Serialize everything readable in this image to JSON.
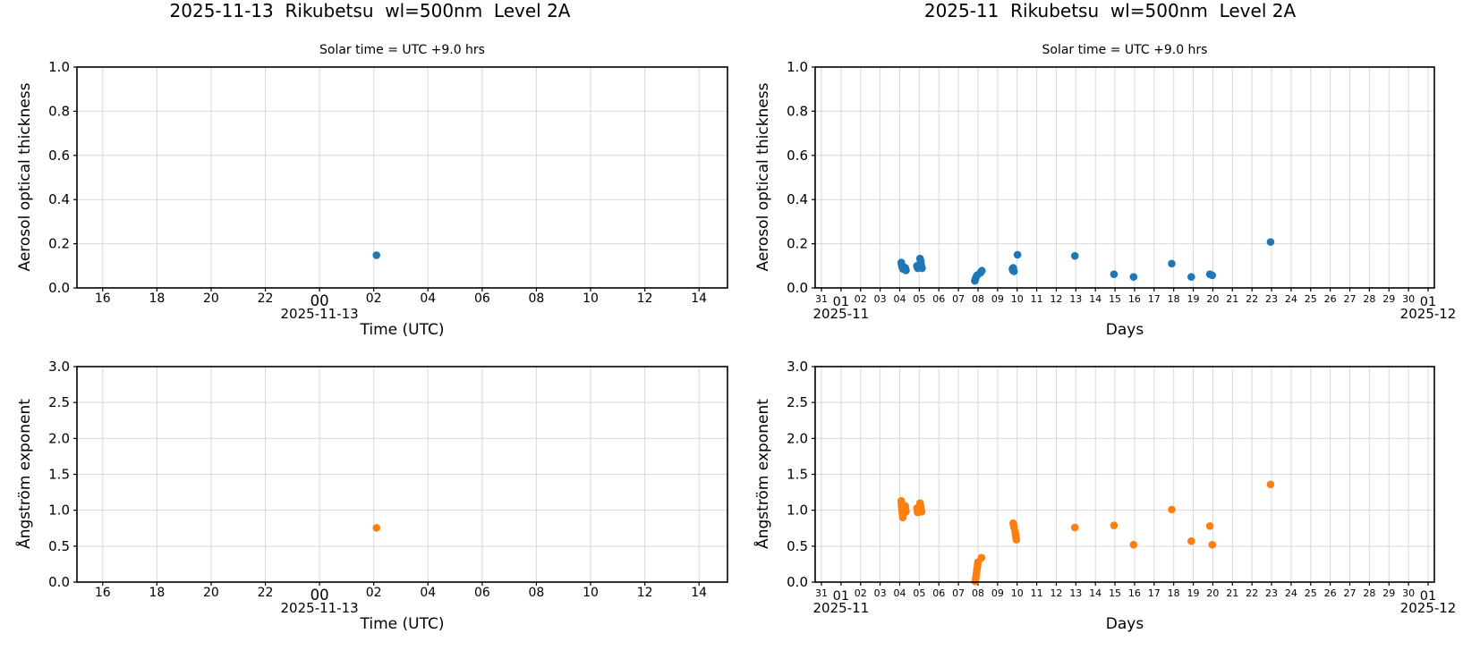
{
  "colors": {
    "blue": "#1f77b4",
    "orange": "#ff7f0e",
    "grid": "#d9d9d9",
    "spine": "#000000",
    "text": "#000000",
    "background": "#ffffff"
  },
  "chart_data": [
    {
      "id": "day-aot",
      "type": "scatter",
      "title": "2025-11-13  Rikubetsu  wl=500nm  Level 2A",
      "subtitle": "Solar time = UTC +9.0 hrs",
      "xlabel": "Time (UTC)",
      "ylabel": "Aerosol optical thickness",
      "grid": true,
      "legend": "none",
      "xlim": [
        -8.95,
        15.05
      ],
      "ylim": [
        0,
        1
      ],
      "xticks": [
        {
          "v": -8,
          "label": "16"
        },
        {
          "v": -6,
          "label": "18"
        },
        {
          "v": -4,
          "label": "20"
        },
        {
          "v": -2,
          "label": "22"
        },
        {
          "v": 0,
          "label": "00",
          "major": true,
          "date": "2025-11-13"
        },
        {
          "v": 2,
          "label": "02"
        },
        {
          "v": 4,
          "label": "04"
        },
        {
          "v": 6,
          "label": "06"
        },
        {
          "v": 8,
          "label": "08"
        },
        {
          "v": 10,
          "label": "10"
        },
        {
          "v": 12,
          "label": "12"
        },
        {
          "v": 14,
          "label": "14"
        }
      ],
      "yticks": [
        {
          "v": 0.0,
          "label": "0.0"
        },
        {
          "v": 0.2,
          "label": "0.2"
        },
        {
          "v": 0.4,
          "label": "0.4"
        },
        {
          "v": 0.6,
          "label": "0.6"
        },
        {
          "v": 0.8,
          "label": "0.8"
        },
        {
          "v": 1.0,
          "label": "1.0"
        }
      ],
      "series": [
        {
          "name": "aerosol-optical-thickness-500nm",
          "color": "#1f77b4",
          "points": [
            [
              2.1,
              0.148
            ]
          ]
        }
      ]
    },
    {
      "id": "month-aot",
      "type": "scatter",
      "title": "2025-11  Rikubetsu  wl=500nm  Level 2A",
      "subtitle": "Solar time = UTC +9.0 hrs",
      "xlabel": "Days",
      "ylabel": "Aerosol optical thickness",
      "grid": true,
      "legend": "none",
      "xlim": [
        -0.32,
        31.32
      ],
      "ylim": [
        0,
        1
      ],
      "xticks": [
        {
          "v": 0,
          "label": "31"
        },
        {
          "v": 1,
          "label": "01",
          "major": true,
          "date": "2025-11"
        },
        {
          "v": 2,
          "label": "02"
        },
        {
          "v": 3,
          "label": "03"
        },
        {
          "v": 4,
          "label": "04"
        },
        {
          "v": 5,
          "label": "05"
        },
        {
          "v": 6,
          "label": "06"
        },
        {
          "v": 7,
          "label": "07"
        },
        {
          "v": 8,
          "label": "08"
        },
        {
          "v": 9,
          "label": "09"
        },
        {
          "v": 10,
          "label": "10"
        },
        {
          "v": 11,
          "label": "11"
        },
        {
          "v": 12,
          "label": "12"
        },
        {
          "v": 13,
          "label": "13"
        },
        {
          "v": 14,
          "label": "14"
        },
        {
          "v": 15,
          "label": "15"
        },
        {
          "v": 16,
          "label": "16"
        },
        {
          "v": 17,
          "label": "17"
        },
        {
          "v": 18,
          "label": "18"
        },
        {
          "v": 19,
          "label": "19"
        },
        {
          "v": 20,
          "label": "20"
        },
        {
          "v": 21,
          "label": "21"
        },
        {
          "v": 22,
          "label": "22"
        },
        {
          "v": 23,
          "label": "23"
        },
        {
          "v": 24,
          "label": "24"
        },
        {
          "v": 25,
          "label": "25"
        },
        {
          "v": 26,
          "label": "26"
        },
        {
          "v": 27,
          "label": "27"
        },
        {
          "v": 28,
          "label": "28"
        },
        {
          "v": 29,
          "label": "29"
        },
        {
          "v": 30,
          "label": "30"
        },
        {
          "v": 31,
          "label": "01",
          "major": true,
          "date": "2025-12"
        }
      ],
      "yticks": [
        {
          "v": 0.0,
          "label": "0.0"
        },
        {
          "v": 0.2,
          "label": "0.2"
        },
        {
          "v": 0.4,
          "label": "0.4"
        },
        {
          "v": 0.6,
          "label": "0.6"
        },
        {
          "v": 0.8,
          "label": "0.8"
        },
        {
          "v": 1.0,
          "label": "1.0"
        }
      ],
      "series": [
        {
          "name": "aerosol-optical-thickness-500nm",
          "color": "#1f77b4",
          "points": [
            [
              4.08,
              0.115
            ],
            [
              4.1,
              0.105
            ],
            [
              4.12,
              0.098
            ],
            [
              4.14,
              0.092
            ],
            [
              4.16,
              0.086
            ],
            [
              4.28,
              0.092
            ],
            [
              4.3,
              0.085
            ],
            [
              4.32,
              0.079
            ],
            [
              4.88,
              0.1
            ],
            [
              4.9,
              0.094
            ],
            [
              4.92,
              0.089
            ],
            [
              5.04,
              0.133
            ],
            [
              5.06,
              0.126
            ],
            [
              5.08,
              0.117
            ],
            [
              5.1,
              0.104
            ],
            [
              5.12,
              0.094
            ],
            [
              5.14,
              0.089
            ],
            [
              7.84,
              0.032
            ],
            [
              7.86,
              0.038
            ],
            [
              7.88,
              0.044
            ],
            [
              7.92,
              0.052
            ],
            [
              7.96,
              0.058
            ],
            [
              8.12,
              0.068
            ],
            [
              8.16,
              0.073
            ],
            [
              8.2,
              0.078
            ],
            [
              9.76,
              0.086
            ],
            [
              9.78,
              0.079
            ],
            [
              9.8,
              0.091
            ],
            [
              9.84,
              0.075
            ],
            [
              10.02,
              0.15
            ],
            [
              12.95,
              0.145
            ],
            [
              14.95,
              0.062
            ],
            [
              15.95,
              0.05
            ],
            [
              17.9,
              0.11
            ],
            [
              18.9,
              0.05
            ],
            [
              19.85,
              0.062
            ],
            [
              19.97,
              0.057
            ],
            [
              22.95,
              0.208
            ]
          ]
        }
      ]
    },
    {
      "id": "day-angstrom",
      "type": "scatter",
      "xlabel": "Time (UTC)",
      "ylabel": "Ångström exponent",
      "grid": true,
      "legend": "none",
      "xlim": [
        -8.95,
        15.05
      ],
      "ylim": [
        0,
        3
      ],
      "xticks": [
        {
          "v": -8,
          "label": "16"
        },
        {
          "v": -6,
          "label": "18"
        },
        {
          "v": -4,
          "label": "20"
        },
        {
          "v": -2,
          "label": "22"
        },
        {
          "v": 0,
          "label": "00",
          "major": true,
          "date": "2025-11-13"
        },
        {
          "v": 2,
          "label": "02"
        },
        {
          "v": 4,
          "label": "04"
        },
        {
          "v": 6,
          "label": "06"
        },
        {
          "v": 8,
          "label": "08"
        },
        {
          "v": 10,
          "label": "10"
        },
        {
          "v": 12,
          "label": "12"
        },
        {
          "v": 14,
          "label": "14"
        }
      ],
      "yticks": [
        {
          "v": 0.0,
          "label": "0.0"
        },
        {
          "v": 0.5,
          "label": "0.5"
        },
        {
          "v": 1.0,
          "label": "1.0"
        },
        {
          "v": 1.5,
          "label": "1.5"
        },
        {
          "v": 2.0,
          "label": "2.0"
        },
        {
          "v": 2.5,
          "label": "2.5"
        },
        {
          "v": 3.0,
          "label": "3.0"
        }
      ],
      "series": [
        {
          "name": "angstrom-exponent",
          "color": "#ff7f0e",
          "points": [
            [
              2.1,
              0.755
            ]
          ]
        }
      ]
    },
    {
      "id": "month-angstrom",
      "type": "scatter",
      "xlabel": "Days",
      "ylabel": "Ångström exponent",
      "grid": true,
      "legend": "none",
      "xlim": [
        -0.32,
        31.32
      ],
      "ylim": [
        0,
        3
      ],
      "xticks": [
        {
          "v": 0,
          "label": "31"
        },
        {
          "v": 1,
          "label": "01",
          "major": true,
          "date": "2025-11"
        },
        {
          "v": 2,
          "label": "02"
        },
        {
          "v": 3,
          "label": "03"
        },
        {
          "v": 4,
          "label": "04"
        },
        {
          "v": 5,
          "label": "05"
        },
        {
          "v": 6,
          "label": "06"
        },
        {
          "v": 7,
          "label": "07"
        },
        {
          "v": 8,
          "label": "08"
        },
        {
          "v": 9,
          "label": "09"
        },
        {
          "v": 10,
          "label": "10"
        },
        {
          "v": 11,
          "label": "11"
        },
        {
          "v": 12,
          "label": "12"
        },
        {
          "v": 13,
          "label": "13"
        },
        {
          "v": 14,
          "label": "14"
        },
        {
          "v": 15,
          "label": "15"
        },
        {
          "v": 16,
          "label": "16"
        },
        {
          "v": 17,
          "label": "17"
        },
        {
          "v": 18,
          "label": "18"
        },
        {
          "v": 19,
          "label": "19"
        },
        {
          "v": 20,
          "label": "20"
        },
        {
          "v": 21,
          "label": "21"
        },
        {
          "v": 22,
          "label": "22"
        },
        {
          "v": 23,
          "label": "23"
        },
        {
          "v": 24,
          "label": "24"
        },
        {
          "v": 25,
          "label": "25"
        },
        {
          "v": 26,
          "label": "26"
        },
        {
          "v": 27,
          "label": "27"
        },
        {
          "v": 28,
          "label": "28"
        },
        {
          "v": 29,
          "label": "29"
        },
        {
          "v": 30,
          "label": "30"
        },
        {
          "v": 31,
          "label": "01",
          "major": true,
          "date": "2025-12"
        }
      ],
      "yticks": [
        {
          "v": 0.0,
          "label": "0.0"
        },
        {
          "v": 0.5,
          "label": "0.5"
        },
        {
          "v": 1.0,
          "label": "1.0"
        },
        {
          "v": 1.5,
          "label": "1.5"
        },
        {
          "v": 2.0,
          "label": "2.0"
        },
        {
          "v": 2.5,
          "label": "2.5"
        },
        {
          "v": 3.0,
          "label": "3.0"
        }
      ],
      "series": [
        {
          "name": "angstrom-exponent",
          "color": "#ff7f0e",
          "points": [
            [
              4.08,
              1.13
            ],
            [
              4.09,
              1.09
            ],
            [
              4.1,
              1.05
            ],
            [
              4.12,
              1.01
            ],
            [
              4.13,
              0.97
            ],
            [
              4.15,
              0.93
            ],
            [
              4.16,
              0.9
            ],
            [
              4.28,
              1.06
            ],
            [
              4.3,
              1.02
            ],
            [
              4.32,
              0.98
            ],
            [
              4.88,
              1.03
            ],
            [
              4.9,
              1.0
            ],
            [
              4.92,
              0.97
            ],
            [
              5.04,
              1.1
            ],
            [
              5.06,
              1.06
            ],
            [
              5.08,
              1.03
            ],
            [
              5.1,
              1.01
            ],
            [
              5.12,
              0.98
            ],
            [
              7.86,
              0.01
            ],
            [
              7.88,
              0.04
            ],
            [
              7.9,
              0.08
            ],
            [
              7.92,
              0.12
            ],
            [
              7.94,
              0.16
            ],
            [
              7.96,
              0.2
            ],
            [
              7.98,
              0.24
            ],
            [
              8.0,
              0.28
            ],
            [
              8.18,
              0.34
            ],
            [
              9.8,
              0.82
            ],
            [
              9.82,
              0.79
            ],
            [
              9.84,
              0.76
            ],
            [
              9.9,
              0.7
            ],
            [
              9.92,
              0.66
            ],
            [
              9.94,
              0.62
            ],
            [
              9.96,
              0.59
            ],
            [
              12.95,
              0.76
            ],
            [
              14.95,
              0.79
            ],
            [
              15.95,
              0.52
            ],
            [
              17.9,
              1.01
            ],
            [
              18.9,
              0.57
            ],
            [
              19.85,
              0.78
            ],
            [
              19.97,
              0.52
            ],
            [
              22.95,
              1.36
            ]
          ]
        }
      ]
    }
  ]
}
